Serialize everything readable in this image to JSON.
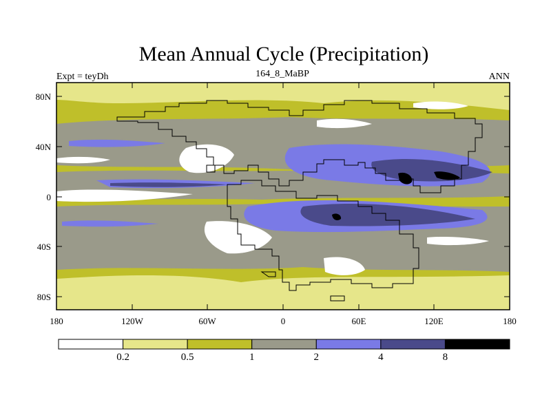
{
  "title": "Mean Annual Cycle (Precipitation)",
  "subtitle_left": "Expt = teyDh",
  "subtitle_center": "164_8_MaBP",
  "subtitle_right": "ANN",
  "map": {
    "lat_labels": [
      "80N",
      "40N",
      "0",
      "40S",
      "80S"
    ],
    "lon_labels": [
      "180",
      "120W",
      "60W",
      "0",
      "60E",
      "120E",
      "180"
    ]
  },
  "colorbar": {
    "labels": [
      "0.2",
      "0.5",
      "1",
      "2",
      "4",
      "8"
    ],
    "colors": [
      "#ffffff",
      "#e6e68a",
      "#bfbf2a",
      "#9a9a8a",
      "#7a7ae6",
      "#4a4a8a",
      "#000000"
    ]
  },
  "palette": {
    "white": "#ffffff",
    "light_yellow": "#e6e68a",
    "olive": "#bfbf2a",
    "gray": "#9a9a8a",
    "blue": "#7a7ae6",
    "dark_blue": "#4a4a8a",
    "black": "#000000"
  }
}
